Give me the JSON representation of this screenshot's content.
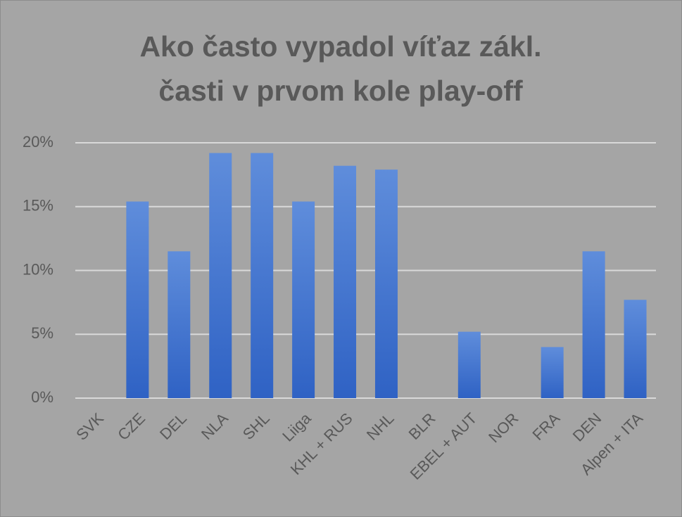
{
  "chart_data": {
    "type": "bar",
    "title": [
      "Ako často vypadol víťaz zákl.",
      "časti v prvom kole play-off"
    ],
    "categories": [
      "SVK",
      "CZE",
      "DEL",
      "NLA",
      "SHL",
      "Liiga",
      "KHL + RUS",
      "NHL",
      "BLR",
      "EBEL + AUT",
      "NOR",
      "FRA",
      "DEN",
      "Alpen + ITA"
    ],
    "values": [
      0,
      15.4,
      11.5,
      19.2,
      19.2,
      15.4,
      18.2,
      17.9,
      0,
      5.2,
      0,
      4.0,
      11.5,
      7.7
    ],
    "color": "#4472c4",
    "ylim": [
      0,
      20
    ],
    "yticks": [
      {
        "value": 0,
        "label": "0%"
      },
      {
        "value": 5,
        "label": "5%"
      },
      {
        "value": 10,
        "label": "10%"
      },
      {
        "value": 15,
        "label": "15%"
      },
      {
        "value": 20,
        "label": "20%"
      }
    ],
    "grid": true
  }
}
